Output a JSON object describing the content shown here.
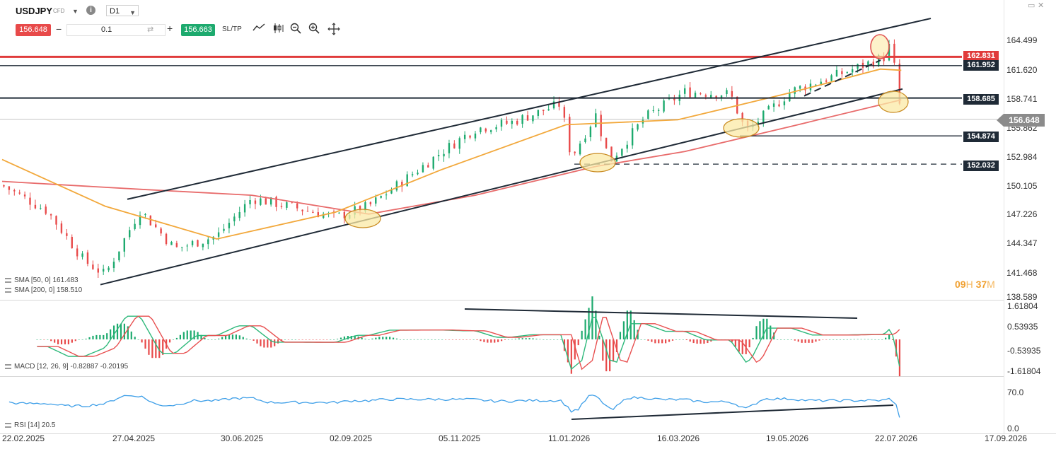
{
  "header": {
    "symbol": "USDJPY",
    "instrument_type": "CFD",
    "timeframe": "D1",
    "sell_price": "156.648",
    "buy_price": "156.663",
    "volume": "0.1",
    "sl_tp_label": "SL/TP",
    "tools": [
      "line-chart-icon",
      "candlestick-icon",
      "zoom-out-icon",
      "zoom-in-icon",
      "crosshair-icon"
    ]
  },
  "window_controls": [
    "restore-icon",
    "close-icon"
  ],
  "price_axis": {
    "ticks": [
      "164.499",
      "161.620",
      "158.741",
      "155.862",
      "152.984",
      "150.105",
      "147.226",
      "144.347",
      "141.468",
      "138.589"
    ],
    "current_price": "156.648"
  },
  "price_levels": [
    {
      "label": "162.831",
      "color": "#e03b3b",
      "style": "solid-thick"
    },
    {
      "label": "161.952",
      "color": "#1f2a36",
      "style": "solid"
    },
    {
      "label": "158.685",
      "color": "#1f2a36",
      "style": "solid-thick"
    },
    {
      "label": "154.874",
      "color": "#1f2a36",
      "style": "solid"
    },
    {
      "label": "152.032",
      "color": "#1f2a36",
      "style": "dashed"
    }
  ],
  "x_axis": {
    "ticks": [
      "22.02.2025",
      "27.04.2025",
      "30.06.2025",
      "02.09.2025",
      "05.11.2025",
      "11.01.2026",
      "16.03.2026",
      "19.05.2026",
      "22.07.2026",
      "17.09.2026"
    ]
  },
  "legend": {
    "sma50": "SMA [50, 0] 161.483",
    "sma200": "SMA [200, 0] 158.510",
    "macd": "MACD [12, 26, 9] -0.82887 -0.20195",
    "rsi": "RSI [14] 20.5"
  },
  "timer": {
    "hours": "09",
    "h_unit": "H",
    "minutes": "37",
    "m_unit": "M"
  },
  "macd_axis": {
    "ticks": [
      "1.61804",
      "0.53935",
      "-0.53935",
      "-1.61804"
    ]
  },
  "rsi_axis": {
    "ticks": [
      "70.0",
      "0.0"
    ]
  },
  "colors": {
    "bull": "#1daa6e",
    "bear": "#e84a4a",
    "sma50": "#f2a83b",
    "sma200": "#e86b6b",
    "macd_line": "#2db87a",
    "signal_line": "#e85050",
    "rsi_line": "#3e9fe8",
    "highlight_fill": "#fbe9a6"
  },
  "chart_data": {
    "type": "candlestick",
    "title": "USDJPY",
    "timeframe": "D1",
    "y_range": [
      138.589,
      164.499
    ],
    "x_range": [
      "2025-02-22",
      "2026-09-17"
    ],
    "approx_closes": [
      {
        "x": "2025-02-22",
        "y": 149.9
      },
      {
        "x": "2025-03-20",
        "y": 147.3
      },
      {
        "x": "2025-04-10",
        "y": 142.3
      },
      {
        "x": "2025-04-22",
        "y": 140.9
      },
      {
        "x": "2025-05-12",
        "y": 147.4
      },
      {
        "x": "2025-06-01",
        "y": 143.5
      },
      {
        "x": "2025-06-25",
        "y": 144.8
      },
      {
        "x": "2025-07-15",
        "y": 148.6
      },
      {
        "x": "2025-08-10",
        "y": 147.6
      },
      {
        "x": "2025-09-01",
        "y": 146.7
      },
      {
        "x": "2025-09-20",
        "y": 147.8
      },
      {
        "x": "2025-10-10",
        "y": 150.4
      },
      {
        "x": "2025-11-01",
        "y": 153.3
      },
      {
        "x": "2025-11-20",
        "y": 155.6
      },
      {
        "x": "2025-12-10",
        "y": 156.2
      },
      {
        "x": "2026-01-08",
        "y": 158.1
      },
      {
        "x": "2026-01-14",
        "y": 152.7
      },
      {
        "x": "2026-01-28",
        "y": 157.0
      },
      {
        "x": "2026-02-05",
        "y": 152.3
      },
      {
        "x": "2026-02-25",
        "y": 156.7
      },
      {
        "x": "2026-03-20",
        "y": 159.3
      },
      {
        "x": "2026-04-15",
        "y": 159.1
      },
      {
        "x": "2026-04-24",
        "y": 155.3
      },
      {
        "x": "2026-05-20",
        "y": 159.4
      },
      {
        "x": "2026-06-20",
        "y": 161.3
      },
      {
        "x": "2026-07-12",
        "y": 162.8
      },
      {
        "x": "2026-07-16",
        "y": 164.2
      },
      {
        "x": "2026-07-20",
        "y": 159.5
      },
      {
        "x": "2026-07-22",
        "y": 156.6
      }
    ],
    "sma50": [
      {
        "x": "2025-02-22",
        "y": 152.5
      },
      {
        "x": "2025-04-22",
        "y": 147.8
      },
      {
        "x": "2025-06-25",
        "y": 144.5
      },
      {
        "x": "2025-09-01",
        "y": 147.2
      },
      {
        "x": "2025-11-01",
        "y": 151.5
      },
      {
        "x": "2026-01-11",
        "y": 156.0
      },
      {
        "x": "2026-03-16",
        "y": 156.5
      },
      {
        "x": "2026-05-19",
        "y": 159.2
      },
      {
        "x": "2026-07-10",
        "y": 161.6
      },
      {
        "x": "2026-07-22",
        "y": 161.483
      }
    ],
    "sma200": [
      {
        "x": "2025-02-22",
        "y": 150.3
      },
      {
        "x": "2025-05-12",
        "y": 149.5
      },
      {
        "x": "2025-07-15",
        "y": 148.9
      },
      {
        "x": "2025-09-20",
        "y": 147.0
      },
      {
        "x": "2025-11-20",
        "y": 148.9
      },
      {
        "x": "2026-01-28",
        "y": 151.8
      },
      {
        "x": "2026-03-20",
        "y": 153.3
      },
      {
        "x": "2026-05-19",
        "y": 155.8
      },
      {
        "x": "2026-07-22",
        "y": 158.51
      }
    ],
    "macd": {
      "macd_value": -0.82887,
      "signal_value": -0.20195,
      "y_ticks": [
        1.61804,
        0.53935,
        -0.53935,
        -1.61804
      ]
    },
    "rsi": {
      "value": 20.5,
      "y_ticks": [
        70.0,
        0.0
      ]
    }
  }
}
